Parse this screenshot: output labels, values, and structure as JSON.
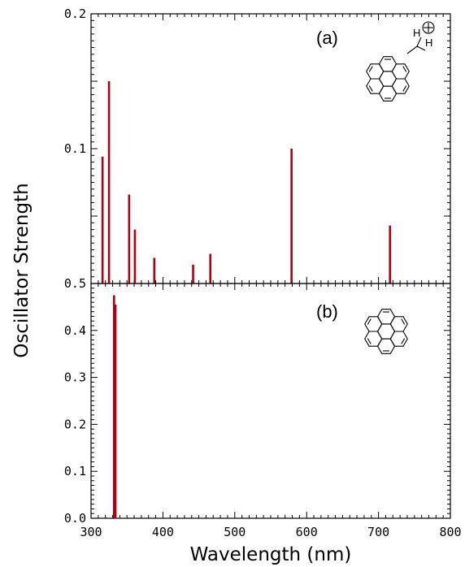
{
  "figure": {
    "ylabel": "Oscillator Strength",
    "xlabel": "Wavelength (nm)",
    "bar_color": "#b0000f"
  },
  "chart_data": [
    {
      "type": "bar",
      "panel_label": "(a)",
      "molecule_labels": [
        "H",
        "H",
        "⊕"
      ],
      "xlim": [
        300,
        800
      ],
      "ylim": [
        0,
        0.2
      ],
      "x_ticks": [
        300,
        400,
        500,
        600,
        700,
        800
      ],
      "y_ticks": [
        0.1,
        0.2
      ],
      "y_tick_labels": [
        "0.1",
        "0.2"
      ],
      "series": [
        {
          "x": [
            316,
            325,
            353,
            361,
            388,
            442,
            466,
            579,
            716
          ],
          "values": [
            0.094,
            0.15,
            0.066,
            0.04,
            0.019,
            0.014,
            0.022,
            0.1,
            0.043
          ]
        }
      ]
    },
    {
      "type": "bar",
      "panel_label": "(b)",
      "xlim": [
        300,
        800
      ],
      "ylim": [
        0,
        0.5
      ],
      "x_ticks": [
        300,
        400,
        500,
        600,
        700,
        800
      ],
      "x_tick_labels": [
        "300",
        "400",
        "500",
        "600",
        "700",
        "800"
      ],
      "y_ticks": [
        0,
        0.1,
        0.2,
        0.3,
        0.4,
        0.5
      ],
      "y_tick_labels": [
        "0.0",
        "0.1",
        "0.2",
        "0.3",
        "0.4",
        "0.5"
      ],
      "series": [
        {
          "x": [
            332,
            334
          ],
          "values": [
            0.475,
            0.455
          ]
        }
      ]
    }
  ]
}
